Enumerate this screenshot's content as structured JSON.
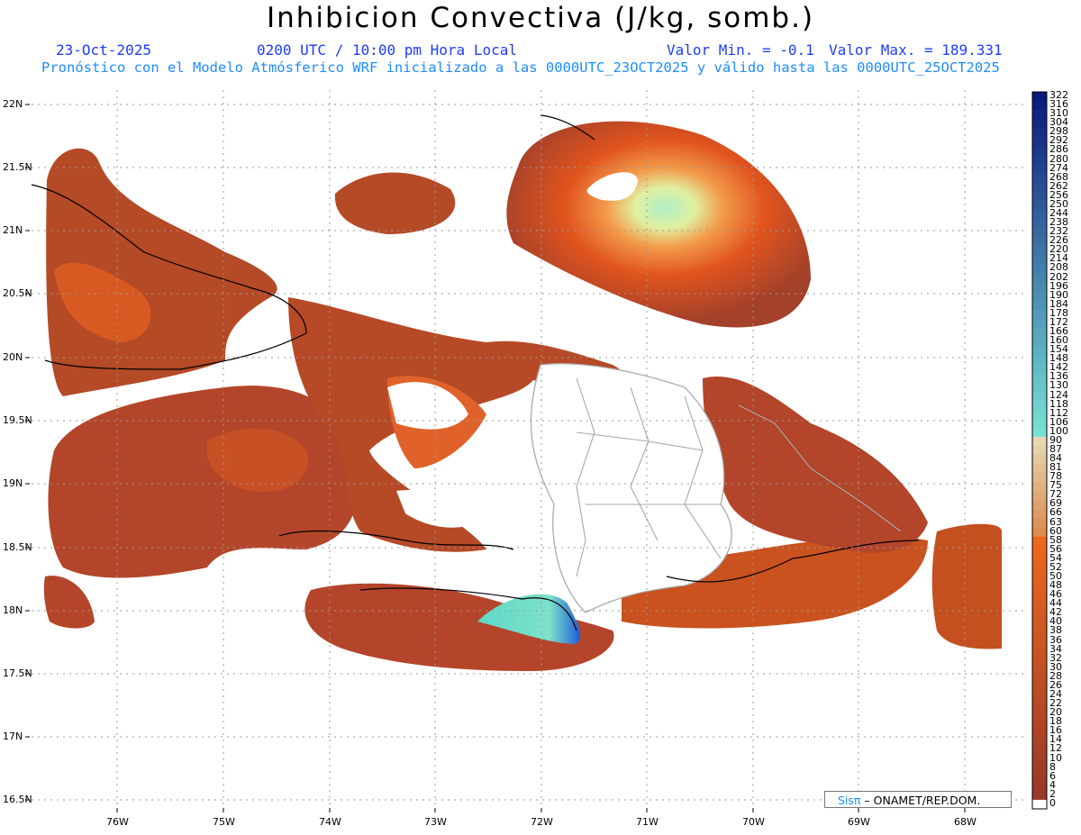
{
  "title": "Inhibicion Convectiva (J/kg, somb.)",
  "date": "23-Oct-2025",
  "time": "0200 UTC / 10:00 pm Hora Local",
  "value_min": "Valor Min. = -0.1",
  "value_max": "Valor Max. = 189.331",
  "model_info": "Pronóstico con el Modelo Atmósferico WRF inicializado a las 0000UTC_23OCT2025 y válido hasta las  0000UTC_25OCT2025",
  "lat_labels": [
    "22N",
    "21.5N",
    "21N",
    "20.5N",
    "20N",
    "19.5N",
    "19N",
    "18.5N",
    "18N",
    "17.5N",
    "17N",
    "16.5N"
  ],
  "lon_labels": [
    "76W",
    "75W",
    "74W",
    "73W",
    "72W",
    "71W",
    "70W",
    "69W",
    "68W"
  ],
  "colorbar_levels": [
    "322",
    "316",
    "310",
    "304",
    "298",
    "292",
    "286",
    "280",
    "274",
    "268",
    "262",
    "256",
    "250",
    "244",
    "238",
    "232",
    "226",
    "220",
    "214",
    "208",
    "202",
    "196",
    "190",
    "184",
    "178",
    "172",
    "166",
    "160",
    "154",
    "148",
    "142",
    "136",
    "130",
    "124",
    "118",
    "112",
    "106",
    "100",
    "90",
    "87",
    "84",
    "81",
    "78",
    "75",
    "72",
    "69",
    "66",
    "63",
    "60",
    "58",
    "56",
    "54",
    "52",
    "50",
    "48",
    "46",
    "44",
    "42",
    "40",
    "38",
    "36",
    "34",
    "32",
    "30",
    "28",
    "26",
    "24",
    "22",
    "20",
    "18",
    "16",
    "14",
    "12",
    "10",
    "8",
    "6",
    "4",
    "2",
    "0"
  ],
  "colors": {
    "title_blue": "#1e3cff",
    "info_blue": "#1e8cff",
    "land_dark": "#9b3b24",
    "field_orange": "#e8501c",
    "field_cyan": "#5fd8c8"
  },
  "credit": {
    "brand": "Sisπ",
    "text": " – ONAMET/REP.DOM."
  }
}
